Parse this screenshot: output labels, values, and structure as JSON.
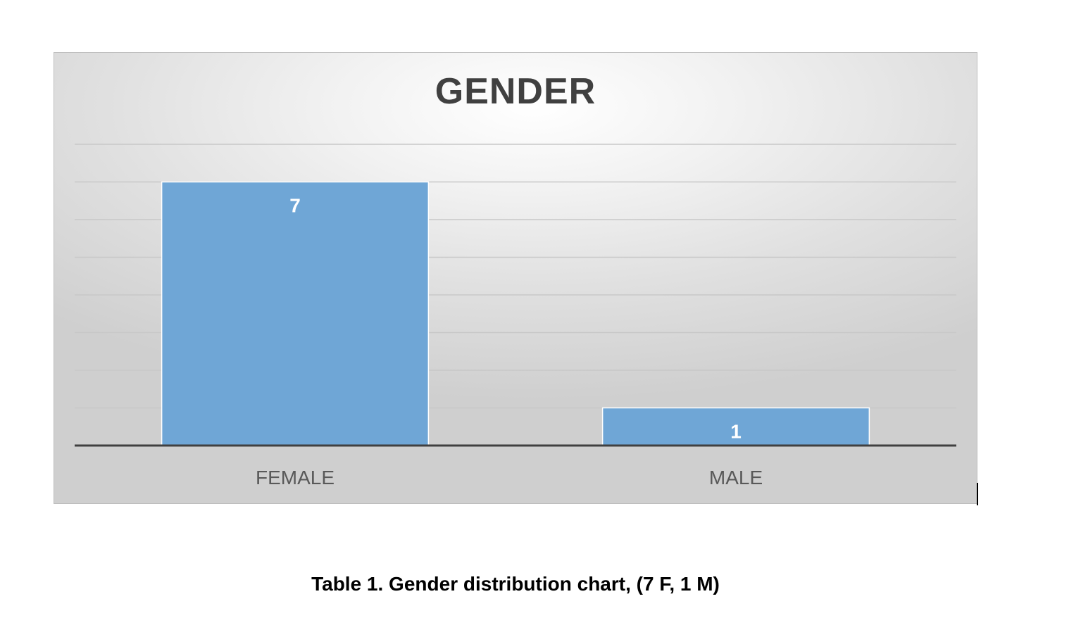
{
  "chart_data": {
    "type": "bar",
    "title": "GENDER",
    "categories": [
      "FEMALE",
      "MALE"
    ],
    "values": [
      7,
      1
    ],
    "data_labels": [
      "7",
      "1"
    ],
    "xlabel": "",
    "ylabel": "",
    "ylim": [
      0,
      8
    ],
    "grid": true,
    "gridline_step": 1,
    "legend": "none",
    "colors": {
      "bar": "#6fa6d6",
      "bar_edge": "#ffffff",
      "axis": "#404040",
      "gridline": "#c8c8c8"
    }
  },
  "caption": "Table 1. Gender distribution chart, (7 F, 1 M)"
}
